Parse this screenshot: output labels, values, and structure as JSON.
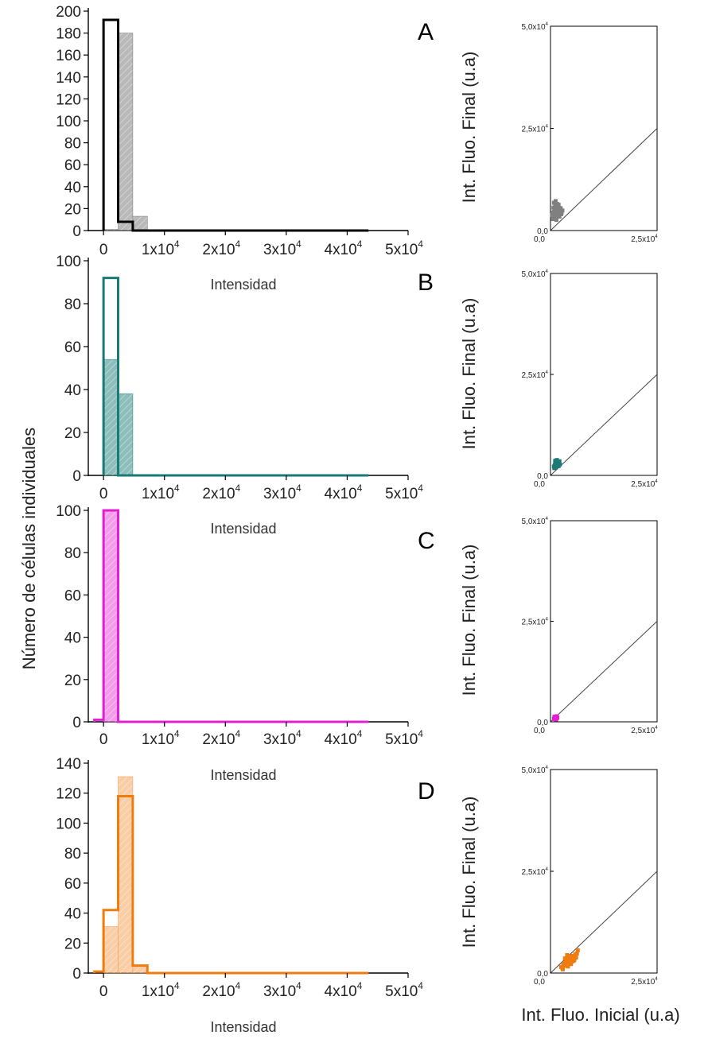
{
  "figure": {
    "y_title": "Número de células  individuales",
    "scatter_x_title": "Int. Fluo. Inicial (u.a)"
  },
  "chart_data": [
    {
      "type": "bar",
      "panel": "A",
      "xlabel": "Intensidad",
      "x_tick_labels": [
        "0",
        "1x10",
        "2x10",
        "3x10",
        "4x10",
        "5x10"
      ],
      "x_tick_exponent": "4",
      "xlim": [
        -2500,
        50000
      ],
      "ylim": [
        0,
        200
      ],
      "y_ticks": [
        0,
        20,
        40,
        60,
        80,
        100,
        120,
        140,
        160,
        180,
        200
      ],
      "bin_edges": [
        0,
        2400,
        4800,
        7200
      ],
      "series": [
        {
          "style": "hatched-fill",
          "color": "#808080",
          "values": [
            1,
            180,
            13
          ]
        },
        {
          "style": "outline",
          "color": "#000000",
          "values": [
            192,
            8,
            0
          ]
        }
      ],
      "baseline_end": 43500
    },
    {
      "type": "bar",
      "panel": "B",
      "xlabel": "Intensidad",
      "x_tick_labels": [
        "0",
        "1x10",
        "2x10",
        "3x10",
        "4x10",
        "5x10"
      ],
      "x_tick_exponent": "4",
      "xlim": [
        -2500,
        50000
      ],
      "ylim": [
        0,
        100
      ],
      "y_ticks": [
        0,
        20,
        40,
        60,
        80,
        100
      ],
      "bin_edges": [
        0,
        2400,
        4800
      ],
      "series": [
        {
          "style": "hatched-fill",
          "color": "#2e8b85",
          "values": [
            54,
            38
          ]
        },
        {
          "style": "outline",
          "color": "#1a7a76",
          "values": [
            92,
            0
          ]
        }
      ],
      "baseline_end": 43500
    },
    {
      "type": "bar",
      "panel": "C",
      "xlabel": "Intensidad",
      "x_tick_labels": [
        "0",
        "1x10",
        "2x10",
        "3x10",
        "4x10",
        "5x10"
      ],
      "x_tick_exponent": "4",
      "xlim": [
        -2500,
        50000
      ],
      "ylim": [
        0,
        100
      ],
      "y_ticks": [
        0,
        20,
        40,
        60,
        80,
        100
      ],
      "bin_edges": [
        -1500,
        0,
        2400
      ],
      "series": [
        {
          "style": "hatched-fill",
          "color": "#e84ad8",
          "values": [
            0,
            100
          ]
        },
        {
          "style": "outline",
          "color": "#e020d0",
          "values": [
            1,
            100
          ]
        }
      ],
      "baseline_end": 43500
    },
    {
      "type": "bar",
      "panel": "D",
      "xlabel": "Intensidad",
      "x_tick_labels": [
        "0",
        "1x10",
        "2x10",
        "3x10",
        "4x10",
        "5x10"
      ],
      "x_tick_exponent": "4",
      "xlim": [
        -2500,
        50000
      ],
      "ylim": [
        0,
        140
      ],
      "y_ticks": [
        0,
        20,
        40,
        60,
        80,
        100,
        120,
        140
      ],
      "bin_edges": [
        -1500,
        0,
        2400,
        4800,
        7200
      ],
      "series": [
        {
          "style": "hatched-fill",
          "color": "#f4a45a",
          "values": [
            0,
            31,
            131,
            5
          ]
        },
        {
          "style": "outline",
          "color": "#f07c10",
          "values": [
            1,
            42,
            118,
            5
          ]
        }
      ],
      "baseline_end": 43500
    },
    {
      "type": "scatter",
      "panel": "A",
      "ylabel": "Int. Fluo. Final (u.a)",
      "x_tick_labels": [
        "0,0",
        "2,5x10"
      ],
      "y_tick_labels": [
        "0,0",
        "2,5x10",
        "5,0x10"
      ],
      "tick_exponent": "4",
      "xlim": [
        0,
        25000
      ],
      "ylim": [
        0,
        50000
      ],
      "diagonal": "y = x",
      "color": "#808080",
      "points_x": [
        400,
        600,
        800,
        1000,
        1200,
        1400,
        1600,
        1800,
        2000,
        2200,
        2400,
        2600,
        2800,
        500,
        900,
        1300,
        1700,
        2100,
        2500,
        700,
        1100,
        1500,
        1900,
        2300,
        800,
        1200,
        1600,
        600,
        1000,
        1400,
        900,
        1300,
        500,
        1800,
        2200
      ],
      "points_y": [
        3800,
        4200,
        4600,
        5000,
        4400,
        3900,
        4800,
        5200,
        4100,
        4700,
        5400,
        4300,
        4900,
        3300,
        3600,
        3500,
        3800,
        3400,
        4000,
        5600,
        6000,
        5800,
        6300,
        5500,
        6800,
        7200,
        6500,
        2800,
        3000,
        2600,
        3200,
        2900,
        4400,
        4500,
        5000
      ]
    },
    {
      "type": "scatter",
      "panel": "B",
      "ylabel": "Int. Fluo. Final (u.a)",
      "x_tick_labels": [
        "0,0",
        "2,5x10"
      ],
      "y_tick_labels": [
        "0,0",
        "2,5x10",
        "5,0x10"
      ],
      "tick_exponent": "4",
      "xlim": [
        0,
        25000
      ],
      "ylim": [
        0,
        50000
      ],
      "diagonal": "y = x",
      "color": "#1a7a76",
      "points_x": [
        800,
        1000,
        1200,
        1400,
        1600,
        1800,
        2000,
        2200,
        1100,
        1500,
        1900,
        1300,
        1700,
        900,
        2100
      ],
      "points_y": [
        2200,
        2600,
        3000,
        2800,
        3400,
        2500,
        3100,
        2700,
        3600,
        3800,
        2300,
        2000,
        3300,
        1800,
        3500
      ]
    },
    {
      "type": "scatter",
      "panel": "C",
      "ylabel": "Int. Fluo. Final (u.a)",
      "x_tick_labels": [
        "0,0",
        "2,5x10"
      ],
      "y_tick_labels": [
        "0,0",
        "2,5x10",
        "5,0x10"
      ],
      "tick_exponent": "4",
      "xlim": [
        0,
        25000
      ],
      "ylim": [
        0,
        50000
      ],
      "diagonal": "y = x",
      "color": "#e020d0",
      "points_x": [
        800,
        1000,
        1200,
        1400,
        1600,
        1100,
        1300,
        900,
        1500,
        1200
      ],
      "points_y": [
        700,
        900,
        1100,
        800,
        1000,
        1300,
        600,
        1200,
        1400,
        1000
      ]
    },
    {
      "type": "scatter",
      "panel": "D",
      "ylabel": "Int. Fluo. Final (u.a)",
      "x_tick_labels": [
        "0,0",
        "2,5x10"
      ],
      "y_tick_labels": [
        "0,0",
        "2,5x10",
        "5,0x10"
      ],
      "tick_exponent": "4",
      "xlim": [
        0,
        25000
      ],
      "ylim": [
        0,
        50000
      ],
      "diagonal": "y = x",
      "color": "#f07c10",
      "points_x": [
        2500,
        3000,
        3500,
        4000,
        4500,
        5000,
        5500,
        6000,
        3200,
        3800,
        4400,
        5200,
        4800,
        4200,
        3600,
        2800,
        5800,
        6400,
        3400,
        4600,
        5400,
        4100,
        3900,
        5100,
        4700,
        3300,
        6200,
        2900,
        4300,
        5600
      ],
      "points_y": [
        1500,
        2000,
        2500,
        3000,
        3500,
        2800,
        3200,
        3800,
        1800,
        2600,
        4000,
        4200,
        2200,
        3400,
        2900,
        1200,
        4600,
        5600,
        3600,
        2400,
        3000,
        1600,
        4400,
        3900,
        2700,
        2300,
        4800,
        900,
        3100,
        3300
      ]
    }
  ]
}
